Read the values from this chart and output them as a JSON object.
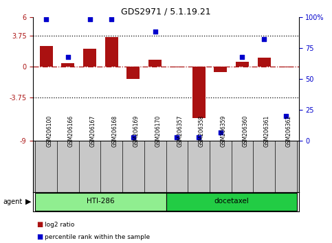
{
  "title": "GDS2971 / 5.1.19.21",
  "samples": [
    "GSM206100",
    "GSM206166",
    "GSM206167",
    "GSM206168",
    "GSM206169",
    "GSM206170",
    "GSM206357",
    "GSM206358",
    "GSM206359",
    "GSM206360",
    "GSM206361",
    "GSM206362"
  ],
  "log2_ratio": [
    2.5,
    0.4,
    2.2,
    3.6,
    -1.5,
    0.8,
    -0.05,
    -6.2,
    -0.7,
    0.6,
    1.1,
    -0.1
  ],
  "pct_rank": [
    98,
    68,
    98,
    98,
    3,
    88,
    3,
    3,
    7,
    68,
    82,
    20
  ],
  "bar_color": "#AA1111",
  "dot_color": "#0000CC",
  "ylim_left": [
    -9,
    6
  ],
  "ylim_right": [
    0,
    100
  ],
  "yticks_left": [
    -9,
    -3.75,
    0,
    3.75,
    6
  ],
  "yticks_right": [
    0,
    25,
    50,
    75,
    100
  ],
  "hlines": [
    3.75,
    -3.75
  ],
  "groups": [
    {
      "label": "HTI-286",
      "start": 0,
      "end": 5,
      "color": "#90EE90"
    },
    {
      "label": "docetaxel",
      "start": 6,
      "end": 11,
      "color": "#22CC44"
    }
  ],
  "agent_label": "agent",
  "legend_bar_label": "log2 ratio",
  "legend_dot_label": "percentile rank within the sample",
  "background_color": "#ffffff",
  "label_bg": "#C8C8C8"
}
